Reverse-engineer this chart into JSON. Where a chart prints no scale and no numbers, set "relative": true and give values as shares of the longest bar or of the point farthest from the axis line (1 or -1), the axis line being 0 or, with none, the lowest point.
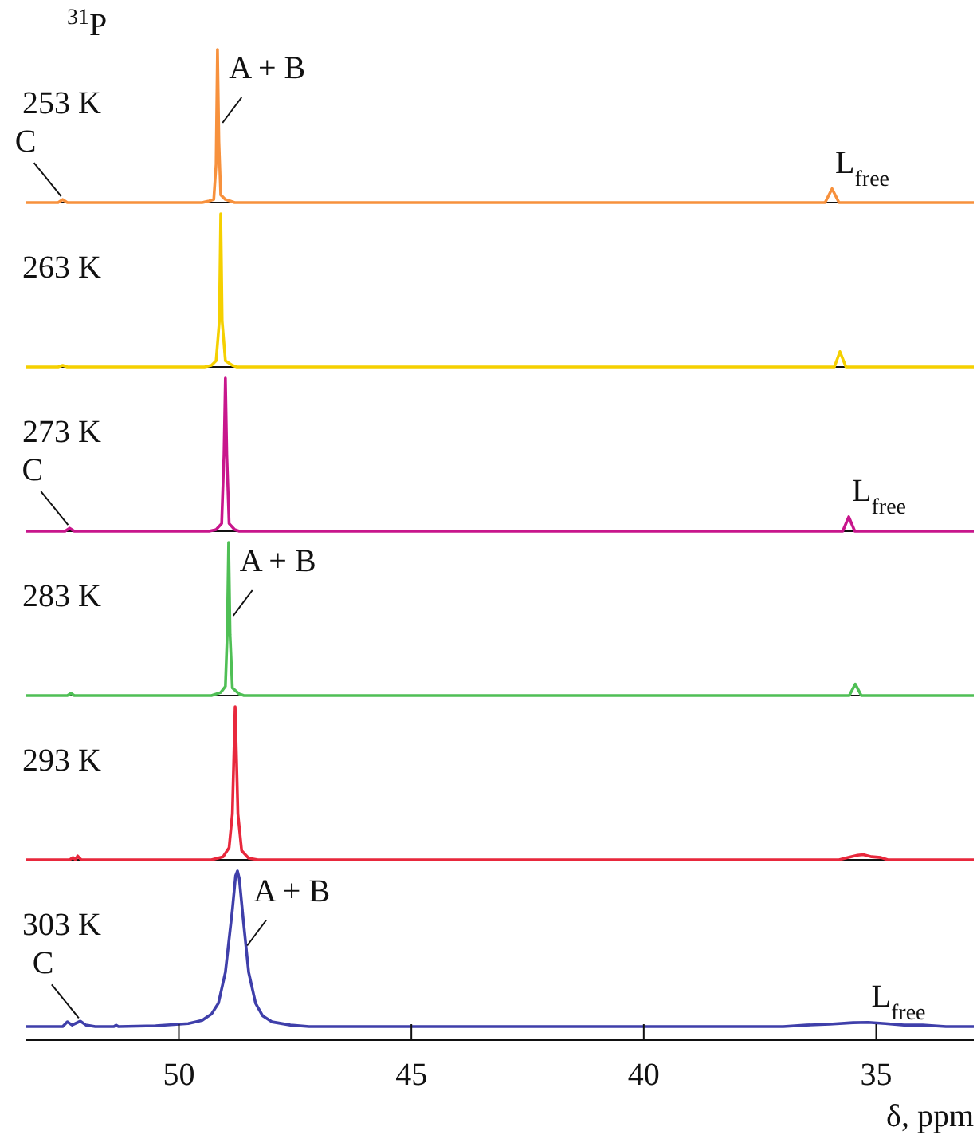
{
  "chart_data": [
    {
      "type": "line",
      "title": "$^{31}$P",
      "relative": true,
      "xlim": [
        53.3,
        32.9
      ],
      "tick_labels": false,
      "series": [
        {
          "name": "253 K",
          "color": "#f7913d",
          "x": [
            53.3,
            52.6,
            52.5,
            52.4,
            49.5,
            49.35,
            49.25,
            49.2,
            49.17,
            49.14,
            49.1,
            49.0,
            48.9,
            48.8,
            36.1,
            35.95,
            35.8,
            32.9
          ],
          "values": [
            0,
            0,
            0.02,
            0,
            0,
            0.01,
            0.02,
            0.25,
            1,
            0.4,
            0.05,
            0.02,
            0.01,
            0,
            0,
            0.09,
            0,
            0
          ]
        }
      ],
      "annotations": [
        {
          "text": "C",
          "x": 52.5,
          "y": 0.02
        },
        {
          "text": "A + B",
          "x": 49.13,
          "y": 0.5
        },
        {
          "text": "L$_{free}$",
          "x": 35.95,
          "y": 0.09
        }
      ]
    },
    {
      "type": "line",
      "relative": true,
      "xlim": [
        53.3,
        32.9
      ],
      "tick_labels": false,
      "series": [
        {
          "name": "263 K",
          "color": "#f5d000",
          "x": [
            53.3,
            52.6,
            52.5,
            52.4,
            49.45,
            49.3,
            49.2,
            49.13,
            49.1,
            49.07,
            49.0,
            48.85,
            48.75,
            35.9,
            35.78,
            35.65,
            32.9
          ],
          "values": [
            0,
            0,
            0.01,
            0,
            0,
            0.01,
            0.04,
            0.3,
            1,
            0.3,
            0.04,
            0.01,
            0,
            0,
            0.1,
            0,
            0
          ]
        }
      ]
    },
    {
      "type": "line",
      "relative": true,
      "xlim": [
        53.3,
        32.9
      ],
      "tick_labels": false,
      "series": [
        {
          "name": "273 K",
          "color": "#c8168c",
          "x": [
            53.3,
            52.45,
            52.35,
            52.25,
            49.35,
            49.2,
            49.08,
            49.03,
            49.0,
            48.97,
            48.92,
            48.8,
            48.7,
            35.72,
            35.59,
            35.46,
            32.9
          ],
          "values": [
            0,
            0,
            0.02,
            0,
            0,
            0.01,
            0.05,
            0.5,
            1,
            0.5,
            0.05,
            0.01,
            0,
            0,
            0.094,
            0,
            0
          ]
        }
      ],
      "annotations": [
        {
          "text": "C",
          "x": 52.35,
          "y": 0.02
        },
        {
          "text": "L$_{free}$",
          "x": 35.59,
          "y": 0.094
        }
      ]
    },
    {
      "type": "line",
      "relative": true,
      "xlim": [
        53.3,
        32.9
      ],
      "tick_labels": false,
      "series": [
        {
          "name": "283 K",
          "color": "#4fbf55",
          "x": [
            53.3,
            52.4,
            52.32,
            52.25,
            49.3,
            49.1,
            49.0,
            48.96,
            48.93,
            48.9,
            48.85,
            48.7,
            48.6,
            35.58,
            35.45,
            35.32,
            32.9
          ],
          "values": [
            0,
            0,
            0.015,
            0,
            0,
            0.02,
            0.06,
            0.4,
            1,
            0.4,
            0.05,
            0.01,
            0,
            0,
            0.075,
            0,
            0
          ]
        }
      ],
      "annotations": [
        {
          "text": "A + B",
          "x": 48.9,
          "y": 0.5
        }
      ]
    },
    {
      "type": "line",
      "relative": true,
      "xlim": [
        53.3,
        32.9
      ],
      "tick_labels": false,
      "series": [
        {
          "name": "293 K",
          "color": "#e8283c",
          "x": [
            53.3,
            52.35,
            52.28,
            52.22,
            52.18,
            52.1,
            49.3,
            49.05,
            48.92,
            48.85,
            48.79,
            48.73,
            48.65,
            48.5,
            48.3,
            35.8,
            35.6,
            35.4,
            35.28,
            35.1,
            34.9,
            34.75,
            32.9
          ],
          "values": [
            0,
            0,
            0.015,
            0,
            0.025,
            0,
            0,
            0.02,
            0.08,
            0.3,
            1,
            0.3,
            0.06,
            0.01,
            0,
            0,
            0.015,
            0.03,
            0.034,
            0.02,
            0.015,
            0,
            0
          ]
        }
      ]
    },
    {
      "type": "line",
      "relative": true,
      "xlim": [
        53.3,
        32.9
      ],
      "xticks": [
        50,
        45,
        40,
        35
      ],
      "xlabel": "δ, ppm",
      "tick_labels": "x",
      "series": [
        {
          "name": "303 K",
          "color": "#3f3faa",
          "x": [
            53.3,
            52.5,
            52.4,
            52.3,
            52.12,
            52.0,
            51.8,
            51.4,
            51.35,
            51.3,
            50.5,
            49.8,
            49.5,
            49.3,
            49.15,
            49.0,
            48.85,
            48.78,
            48.74,
            48.7,
            48.62,
            48.5,
            48.35,
            48.2,
            48.0,
            47.6,
            47.2,
            37,
            36.5,
            36,
            35.5,
            35.17,
            34.8,
            34.4,
            34.0,
            33.5,
            32.9
          ],
          "values": [
            0.08,
            0.08,
            0.108,
            0.089,
            0.112,
            0.089,
            0.08,
            0.08,
            0.089,
            0.08,
            0.085,
            0.098,
            0.117,
            0.154,
            0.218,
            0.402,
            0.77,
            0.972,
            1,
            0.954,
            0.724,
            0.402,
            0.218,
            0.144,
            0.108,
            0.089,
            0.08,
            0.08,
            0.089,
            0.094,
            0.103,
            0.105,
            0.098,
            0.089,
            0.089,
            0.08,
            0.08
          ]
        }
      ],
      "annotations": [
        {
          "text": "C",
          "x": 52.12,
          "y": 0.112
        },
        {
          "text": "A + B",
          "x": 48.6,
          "y": 0.54
        },
        {
          "text": "L$_{free}$",
          "x": 35.17,
          "y": 0.105
        }
      ]
    }
  ]
}
